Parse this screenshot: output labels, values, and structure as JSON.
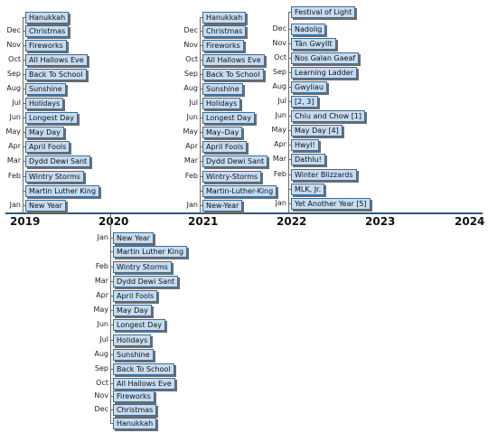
{
  "axis": {
    "years": [
      "2019",
      "2020",
      "2021",
      "2022",
      "2023",
      "2024"
    ],
    "colors": {
      "axis": "#2d5a7a",
      "box_fill": "#c6dcf1",
      "box_border": "#3f6c93",
      "shadow": "#6d6d6d"
    }
  },
  "timelines": [
    {
      "year": "2019",
      "events": [
        {
          "month": "Jan",
          "label": "New Year"
        },
        {
          "month": "",
          "label": "Martin Luther King"
        },
        {
          "month": "Feb",
          "label": "Wintry Storms"
        },
        {
          "month": "Mar",
          "label": "Dydd Dewi Sant"
        },
        {
          "month": "Apr",
          "label": "April Fools"
        },
        {
          "month": "May",
          "label": "May Day"
        },
        {
          "month": "Jun",
          "label": "Longest Day"
        },
        {
          "month": "Jul",
          "label": "Holidays"
        },
        {
          "month": "Aug",
          "label": "Sunshine"
        },
        {
          "month": "Sep",
          "label": "Back To School"
        },
        {
          "month": "Oct",
          "label": "All Hallows Eve"
        },
        {
          "month": "Nov",
          "label": "Fireworks"
        },
        {
          "month": "Dec",
          "label": "Christmas"
        },
        {
          "month": "",
          "label": "Hanukkah"
        }
      ]
    },
    {
      "year": "2020",
      "events": [
        {
          "month": "Jan",
          "label": "New Year"
        },
        {
          "month": "",
          "label": "Martin Luther King"
        },
        {
          "month": "Feb",
          "label": "Wintry Storms"
        },
        {
          "month": "Mar",
          "label": "Dydd Dewi Sant"
        },
        {
          "month": "Apr",
          "label": "April Fools"
        },
        {
          "month": "May",
          "label": "May Day"
        },
        {
          "month": "Jun",
          "label": "Longest Day"
        },
        {
          "month": "Jul",
          "label": "Holidays"
        },
        {
          "month": "Aug",
          "label": "Sunshine"
        },
        {
          "month": "Sep",
          "label": "Back To School"
        },
        {
          "month": "Oct",
          "label": "All Hallows Eve"
        },
        {
          "month": "Nov",
          "label": "Fireworks"
        },
        {
          "month": "Dec",
          "label": "Christmas"
        },
        {
          "month": "",
          "label": "Hanukkah"
        }
      ]
    },
    {
      "year": "2021",
      "events": [
        {
          "month": "Jan",
          "label": "New-Year"
        },
        {
          "month": "",
          "label": "Martin-Luther-King"
        },
        {
          "month": "Feb",
          "label": "Wintry-Storms"
        },
        {
          "month": "Mar",
          "label": "Dydd Dewi Sant"
        },
        {
          "month": "Apr",
          "label": "April Fools"
        },
        {
          "month": "May",
          "label": "May–Day"
        },
        {
          "month": "Jun",
          "label": "Longest Day"
        },
        {
          "month": "Jul",
          "label": "Holidays"
        },
        {
          "month": "Aug",
          "label": "Sunshine"
        },
        {
          "month": "Sep",
          "label": "Back To School"
        },
        {
          "month": "Oct",
          "label": "All Hallows Eve"
        },
        {
          "month": "Nov",
          "label": "Fireworks"
        },
        {
          "month": "Dec",
          "label": "Christmas"
        },
        {
          "month": "",
          "label": "Hanukkah"
        }
      ]
    },
    {
      "year": "2022",
      "events": [
        {
          "month": "Jan",
          "label": "Yet Another Year [5]"
        },
        {
          "month": "",
          "label": "MLK, Jr."
        },
        {
          "month": "Feb",
          "label": "Winter Blizzards"
        },
        {
          "month": "Mar",
          "label": "Dathlu!"
        },
        {
          "month": "Apr",
          "label": "Hwyl!"
        },
        {
          "month": "May",
          "label": "May Day [4]"
        },
        {
          "month": "Jun",
          "label": "Chiu and Chow [1]"
        },
        {
          "month": "Jul",
          "label": "[2, 3]"
        },
        {
          "month": "Aug",
          "label": "Gwyliau"
        },
        {
          "month": "Sep",
          "label": "Learning Ladder"
        },
        {
          "month": "Oct",
          "label": "Nos Galan Gaeaf"
        },
        {
          "month": "Nov",
          "label": "Tân Gwyllt"
        },
        {
          "month": "Dec",
          "label": "Nadolig"
        },
        {
          "month": "",
          "label": "Festival of Light"
        }
      ]
    }
  ]
}
